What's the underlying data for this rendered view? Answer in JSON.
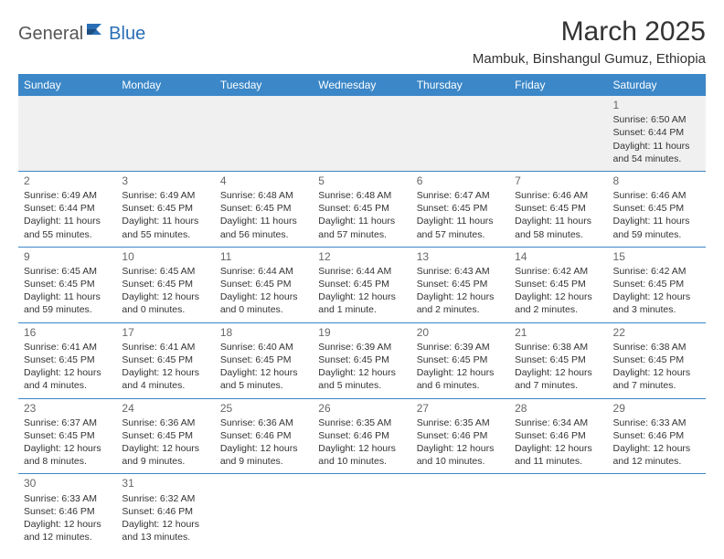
{
  "brand": {
    "part1": "General",
    "part2": "Blue"
  },
  "title": "March 2025",
  "location": "Mambuk, Binshangul Gumuz, Ethiopia",
  "colors": {
    "header_bg": "#3b87c8",
    "header_text": "#ffffff",
    "row_border": "#3b87c8",
    "empty_bg": "#f0f0f0",
    "text": "#333333",
    "brand_accent": "#2a6fb5"
  },
  "weekdays": [
    "Sunday",
    "Monday",
    "Tuesday",
    "Wednesday",
    "Thursday",
    "Friday",
    "Saturday"
  ],
  "weeks": [
    [
      null,
      null,
      null,
      null,
      null,
      null,
      {
        "d": "1",
        "sr": "Sunrise: 6:50 AM",
        "ss": "Sunset: 6:44 PM",
        "dl": "Daylight: 11 hours and 54 minutes."
      }
    ],
    [
      {
        "d": "2",
        "sr": "Sunrise: 6:49 AM",
        "ss": "Sunset: 6:44 PM",
        "dl": "Daylight: 11 hours and 55 minutes."
      },
      {
        "d": "3",
        "sr": "Sunrise: 6:49 AM",
        "ss": "Sunset: 6:45 PM",
        "dl": "Daylight: 11 hours and 55 minutes."
      },
      {
        "d": "4",
        "sr": "Sunrise: 6:48 AM",
        "ss": "Sunset: 6:45 PM",
        "dl": "Daylight: 11 hours and 56 minutes."
      },
      {
        "d": "5",
        "sr": "Sunrise: 6:48 AM",
        "ss": "Sunset: 6:45 PM",
        "dl": "Daylight: 11 hours and 57 minutes."
      },
      {
        "d": "6",
        "sr": "Sunrise: 6:47 AM",
        "ss": "Sunset: 6:45 PM",
        "dl": "Daylight: 11 hours and 57 minutes."
      },
      {
        "d": "7",
        "sr": "Sunrise: 6:46 AM",
        "ss": "Sunset: 6:45 PM",
        "dl": "Daylight: 11 hours and 58 minutes."
      },
      {
        "d": "8",
        "sr": "Sunrise: 6:46 AM",
        "ss": "Sunset: 6:45 PM",
        "dl": "Daylight: 11 hours and 59 minutes."
      }
    ],
    [
      {
        "d": "9",
        "sr": "Sunrise: 6:45 AM",
        "ss": "Sunset: 6:45 PM",
        "dl": "Daylight: 11 hours and 59 minutes."
      },
      {
        "d": "10",
        "sr": "Sunrise: 6:45 AM",
        "ss": "Sunset: 6:45 PM",
        "dl": "Daylight: 12 hours and 0 minutes."
      },
      {
        "d": "11",
        "sr": "Sunrise: 6:44 AM",
        "ss": "Sunset: 6:45 PM",
        "dl": "Daylight: 12 hours and 0 minutes."
      },
      {
        "d": "12",
        "sr": "Sunrise: 6:44 AM",
        "ss": "Sunset: 6:45 PM",
        "dl": "Daylight: 12 hours and 1 minute."
      },
      {
        "d": "13",
        "sr": "Sunrise: 6:43 AM",
        "ss": "Sunset: 6:45 PM",
        "dl": "Daylight: 12 hours and 2 minutes."
      },
      {
        "d": "14",
        "sr": "Sunrise: 6:42 AM",
        "ss": "Sunset: 6:45 PM",
        "dl": "Daylight: 12 hours and 2 minutes."
      },
      {
        "d": "15",
        "sr": "Sunrise: 6:42 AM",
        "ss": "Sunset: 6:45 PM",
        "dl": "Daylight: 12 hours and 3 minutes."
      }
    ],
    [
      {
        "d": "16",
        "sr": "Sunrise: 6:41 AM",
        "ss": "Sunset: 6:45 PM",
        "dl": "Daylight: 12 hours and 4 minutes."
      },
      {
        "d": "17",
        "sr": "Sunrise: 6:41 AM",
        "ss": "Sunset: 6:45 PM",
        "dl": "Daylight: 12 hours and 4 minutes."
      },
      {
        "d": "18",
        "sr": "Sunrise: 6:40 AM",
        "ss": "Sunset: 6:45 PM",
        "dl": "Daylight: 12 hours and 5 minutes."
      },
      {
        "d": "19",
        "sr": "Sunrise: 6:39 AM",
        "ss": "Sunset: 6:45 PM",
        "dl": "Daylight: 12 hours and 5 minutes."
      },
      {
        "d": "20",
        "sr": "Sunrise: 6:39 AM",
        "ss": "Sunset: 6:45 PM",
        "dl": "Daylight: 12 hours and 6 minutes."
      },
      {
        "d": "21",
        "sr": "Sunrise: 6:38 AM",
        "ss": "Sunset: 6:45 PM",
        "dl": "Daylight: 12 hours and 7 minutes."
      },
      {
        "d": "22",
        "sr": "Sunrise: 6:38 AM",
        "ss": "Sunset: 6:45 PM",
        "dl": "Daylight: 12 hours and 7 minutes."
      }
    ],
    [
      {
        "d": "23",
        "sr": "Sunrise: 6:37 AM",
        "ss": "Sunset: 6:45 PM",
        "dl": "Daylight: 12 hours and 8 minutes."
      },
      {
        "d": "24",
        "sr": "Sunrise: 6:36 AM",
        "ss": "Sunset: 6:45 PM",
        "dl": "Daylight: 12 hours and 9 minutes."
      },
      {
        "d": "25",
        "sr": "Sunrise: 6:36 AM",
        "ss": "Sunset: 6:46 PM",
        "dl": "Daylight: 12 hours and 9 minutes."
      },
      {
        "d": "26",
        "sr": "Sunrise: 6:35 AM",
        "ss": "Sunset: 6:46 PM",
        "dl": "Daylight: 12 hours and 10 minutes."
      },
      {
        "d": "27",
        "sr": "Sunrise: 6:35 AM",
        "ss": "Sunset: 6:46 PM",
        "dl": "Daylight: 12 hours and 10 minutes."
      },
      {
        "d": "28",
        "sr": "Sunrise: 6:34 AM",
        "ss": "Sunset: 6:46 PM",
        "dl": "Daylight: 12 hours and 11 minutes."
      },
      {
        "d": "29",
        "sr": "Sunrise: 6:33 AM",
        "ss": "Sunset: 6:46 PM",
        "dl": "Daylight: 12 hours and 12 minutes."
      }
    ],
    [
      {
        "d": "30",
        "sr": "Sunrise: 6:33 AM",
        "ss": "Sunset: 6:46 PM",
        "dl": "Daylight: 12 hours and 12 minutes."
      },
      {
        "d": "31",
        "sr": "Sunrise: 6:32 AM",
        "ss": "Sunset: 6:46 PM",
        "dl": "Daylight: 12 hours and 13 minutes."
      },
      null,
      null,
      null,
      null,
      null
    ]
  ]
}
